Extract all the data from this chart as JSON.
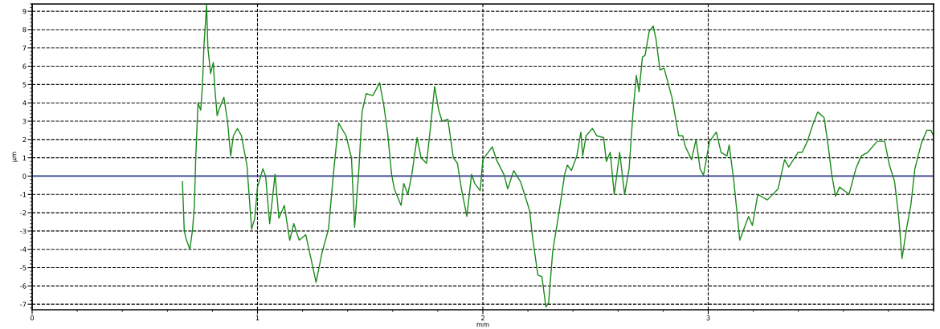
{
  "chart_data": {
    "type": "line",
    "xlabel": "mm",
    "ylabel": "µm",
    "xlim": [
      0,
      4
    ],
    "xticks": [
      0,
      1,
      2,
      3
    ],
    "ylim": [
      -7.3,
      9.4
    ],
    "yticks": [
      -7,
      -6,
      -5,
      -4,
      -3,
      -2,
      -1,
      0,
      1,
      2,
      3,
      4,
      5,
      6,
      7,
      8,
      9
    ],
    "grid": true,
    "line_style": "solid",
    "marker": "none",
    "legend": false,
    "ref_lines": [
      {
        "axis": "y",
        "value": 0,
        "color": "#2e3a8c",
        "line_style": "solid"
      }
    ],
    "series": [
      {
        "color": "#1a8a1a",
        "x": [
          0.667,
          0.675,
          0.685,
          0.7,
          0.712,
          0.72,
          0.726,
          0.736,
          0.748,
          0.756,
          0.762,
          0.774,
          0.78,
          0.792,
          0.804,
          0.81,
          0.821,
          0.831,
          0.851,
          0.867,
          0.881,
          0.893,
          0.911,
          0.929,
          0.953,
          0.974,
          0.988,
          1.0,
          1.024,
          1.036,
          1.054,
          1.078,
          1.095,
          1.119,
          1.143,
          1.161,
          1.185,
          1.214,
          1.232,
          1.26,
          1.286,
          1.315,
          1.339,
          1.36,
          1.393,
          1.417,
          1.431,
          1.45,
          1.464,
          1.482,
          1.512,
          1.542,
          1.56,
          1.578,
          1.595,
          1.607,
          1.637,
          1.649,
          1.667,
          1.685,
          1.708,
          1.726,
          1.75,
          1.768,
          1.786,
          1.804,
          1.819,
          1.845,
          1.869,
          1.887,
          1.905,
          1.929,
          1.95,
          1.964,
          1.988,
          2.0,
          2.042,
          2.06,
          2.095,
          2.11,
          2.137,
          2.167,
          2.185,
          2.208,
          2.22,
          2.244,
          2.262,
          2.28,
          2.292,
          2.31,
          2.339,
          2.363,
          2.375,
          2.393,
          2.417,
          2.435,
          2.443,
          2.458,
          2.486,
          2.506,
          2.536,
          2.548,
          2.565,
          2.583,
          2.607,
          2.629,
          2.649,
          2.667,
          2.681,
          2.693,
          2.708,
          2.72,
          2.738,
          2.756,
          2.768,
          2.786,
          2.804,
          2.839,
          2.869,
          2.887,
          2.899,
          2.926,
          2.946,
          2.964,
          2.979,
          3.006,
          3.036,
          3.057,
          3.083,
          3.093,
          3.113,
          3.14,
          3.179,
          3.196,
          3.22,
          3.262,
          3.31,
          3.339,
          3.357,
          3.399,
          3.417,
          3.44,
          3.464,
          3.486,
          3.514,
          3.533,
          3.548,
          3.565,
          3.583,
          3.625,
          3.655,
          3.679,
          3.708,
          3.75,
          3.783,
          3.804,
          3.827,
          3.845,
          3.86,
          3.881,
          3.899,
          3.917,
          3.946,
          3.97,
          3.988,
          4.0
        ],
        "values": [
          -0.3,
          -3.0,
          -3.5,
          -4.0,
          -2.9,
          -1.6,
          1.0,
          4.0,
          3.6,
          5.0,
          7.0,
          9.35,
          7.0,
          5.6,
          6.2,
          4.9,
          3.3,
          3.7,
          4.3,
          3.0,
          1.1,
          2.2,
          2.6,
          2.2,
          0.6,
          -2.9,
          -2.3,
          -0.6,
          0.4,
          0,
          -2.6,
          0.1,
          -2.3,
          -1.6,
          -3.5,
          -2.6,
          -3.5,
          -3.2,
          -4.2,
          -5.8,
          -4.2,
          -2.9,
          0.4,
          2.9,
          2.2,
          1.0,
          -2.8,
          0.4,
          3.5,
          4.5,
          4.4,
          5.1,
          3.9,
          2.3,
          0.1,
          -0.7,
          -1.6,
          -0.4,
          -1.0,
          0.1,
          2.1,
          1.0,
          0.7,
          2.7,
          4.9,
          3.6,
          3.0,
          3.1,
          1.0,
          0.7,
          -0.7,
          -2.2,
          0.1,
          -0.4,
          -0.8,
          0.9,
          1.6,
          0.9,
          0.05,
          -0.7,
          0.3,
          -0.3,
          -1.0,
          -1.9,
          -3.3,
          -5.4,
          -5.5,
          -7.15,
          -6.9,
          -4.1,
          -1.9,
          0.1,
          0.6,
          0.3,
          1.1,
          2.4,
          1.1,
          2.2,
          2.6,
          2.2,
          2.1,
          0.8,
          1.3,
          -1.0,
          1.3,
          -1.0,
          0.4,
          3.6,
          5.5,
          4.6,
          6.5,
          6.6,
          7.9,
          8.2,
          7.5,
          5.8,
          5.9,
          4.3,
          2.2,
          2.2,
          1.6,
          0.9,
          2.0,
          0.4,
          0.05,
          1.9,
          2.4,
          1.3,
          1.1,
          1.7,
          -0.2,
          -3.5,
          -2.2,
          -2.7,
          -1.0,
          -1.3,
          -0.7,
          0.9,
          0.5,
          1.3,
          1.3,
          1.9,
          2.8,
          3.5,
          3.2,
          1.6,
          0.1,
          -1.1,
          -0.6,
          -1.0,
          0.4,
          1.1,
          1.3,
          1.9,
          1.9,
          0.6,
          -0.3,
          -2.2,
          -4.5,
          -2.8,
          -1.6,
          0.4,
          1.8,
          2.5,
          2.5,
          2.2
        ]
      }
    ]
  }
}
